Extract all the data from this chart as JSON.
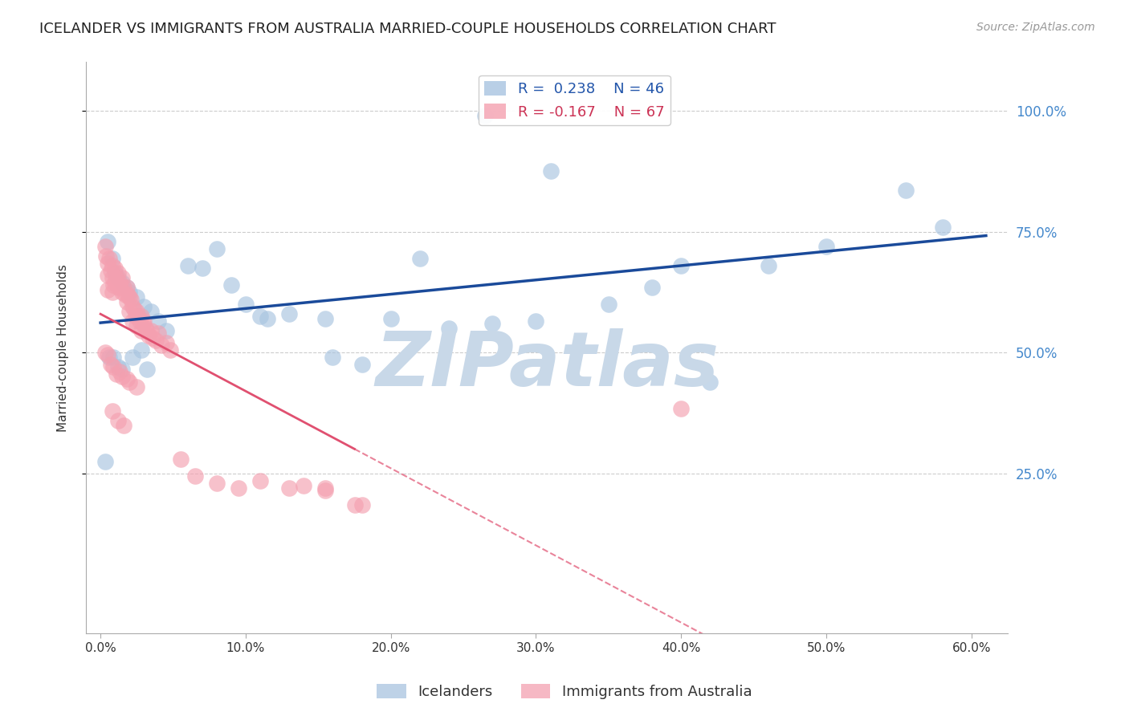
{
  "title": "ICELANDER VS IMMIGRANTS FROM AUSTRALIA MARRIED-COUPLE HOUSEHOLDS CORRELATION CHART",
  "source": "Source: ZipAtlas.com",
  "ylabel": "Married-couple Households",
  "xlabel_ticks": [
    "0.0%",
    "10.0%",
    "20.0%",
    "30.0%",
    "40.0%",
    "50.0%",
    "60.0%"
  ],
  "ylabel_ticks": [
    "100.0%",
    "75.0%",
    "50.0%",
    "25.0%"
  ],
  "ylabel_tick_vals": [
    1.0,
    0.75,
    0.5,
    0.25
  ],
  "xlim": [
    -0.01,
    0.625
  ],
  "ylim": [
    -0.08,
    1.1
  ],
  "blue_R": 0.238,
  "blue_N": 46,
  "pink_R": -0.167,
  "pink_N": 67,
  "blue_color": "#A8C4E0",
  "pink_color": "#F4A0B0",
  "blue_line_color": "#1A4A9A",
  "pink_line_color": "#E05070",
  "watermark": "ZIPatlas",
  "watermark_color": "#C8D8E8",
  "legend_label_blue": "Icelanders",
  "legend_label_pink": "Immigrants from Australia",
  "blue_scatter_x": [
    0.265,
    0.31,
    0.555,
    0.46,
    0.42,
    0.005,
    0.008,
    0.01,
    0.012,
    0.015,
    0.018,
    0.02,
    0.025,
    0.03,
    0.035,
    0.04,
    0.045,
    0.06,
    0.07,
    0.08,
    0.09,
    0.1,
    0.11,
    0.115,
    0.13,
    0.155,
    0.16,
    0.18,
    0.2,
    0.22,
    0.24,
    0.003,
    0.006,
    0.009,
    0.012,
    0.015,
    0.022,
    0.028,
    0.032,
    0.27,
    0.3,
    0.35,
    0.38,
    0.4,
    0.5,
    0.58
  ],
  "blue_scatter_y": [
    0.99,
    0.875,
    0.835,
    0.68,
    0.44,
    0.73,
    0.695,
    0.665,
    0.655,
    0.645,
    0.635,
    0.625,
    0.615,
    0.595,
    0.585,
    0.565,
    0.545,
    0.68,
    0.675,
    0.715,
    0.64,
    0.6,
    0.575,
    0.57,
    0.58,
    0.57,
    0.49,
    0.475,
    0.57,
    0.695,
    0.55,
    0.275,
    0.49,
    0.49,
    0.47,
    0.465,
    0.49,
    0.505,
    0.465,
    0.56,
    0.565,
    0.6,
    0.635,
    0.68,
    0.72,
    0.76
  ],
  "pink_scatter_x": [
    0.003,
    0.004,
    0.005,
    0.005,
    0.005,
    0.006,
    0.007,
    0.008,
    0.008,
    0.008,
    0.009,
    0.01,
    0.01,
    0.011,
    0.012,
    0.012,
    0.013,
    0.014,
    0.015,
    0.015,
    0.016,
    0.017,
    0.018,
    0.018,
    0.019,
    0.02,
    0.02,
    0.021,
    0.022,
    0.022,
    0.023,
    0.024,
    0.025,
    0.025,
    0.026,
    0.027,
    0.028,
    0.028,
    0.029,
    0.03,
    0.031,
    0.032,
    0.033,
    0.035,
    0.036,
    0.038,
    0.04,
    0.042,
    0.045,
    0.048,
    0.003,
    0.005,
    0.007,
    0.009,
    0.011,
    0.013,
    0.015,
    0.018,
    0.02,
    0.025,
    0.008,
    0.012,
    0.016,
    0.14,
    0.155,
    0.18,
    0.4
  ],
  "pink_scatter_y": [
    0.72,
    0.7,
    0.685,
    0.66,
    0.63,
    0.695,
    0.67,
    0.68,
    0.655,
    0.625,
    0.64,
    0.675,
    0.645,
    0.655,
    0.665,
    0.635,
    0.645,
    0.635,
    0.655,
    0.625,
    0.635,
    0.62,
    0.635,
    0.605,
    0.62,
    0.615,
    0.585,
    0.61,
    0.595,
    0.565,
    0.59,
    0.575,
    0.585,
    0.555,
    0.575,
    0.565,
    0.575,
    0.545,
    0.56,
    0.565,
    0.55,
    0.545,
    0.535,
    0.545,
    0.53,
    0.525,
    0.54,
    0.515,
    0.52,
    0.505,
    0.5,
    0.495,
    0.475,
    0.47,
    0.455,
    0.46,
    0.45,
    0.445,
    0.44,
    0.43,
    0.38,
    0.36,
    0.35,
    0.225,
    0.215,
    0.185,
    0.385
  ],
  "pink_extra_x": [
    0.055,
    0.065,
    0.08,
    0.095,
    0.11,
    0.13,
    0.155,
    0.175
  ],
  "pink_extra_y": [
    0.28,
    0.245,
    0.23,
    0.22,
    0.235,
    0.22,
    0.22,
    0.185
  ],
  "title_fontsize": 13,
  "axis_label_fontsize": 11,
  "tick_fontsize": 11,
  "legend_fontsize": 13,
  "source_fontsize": 10
}
